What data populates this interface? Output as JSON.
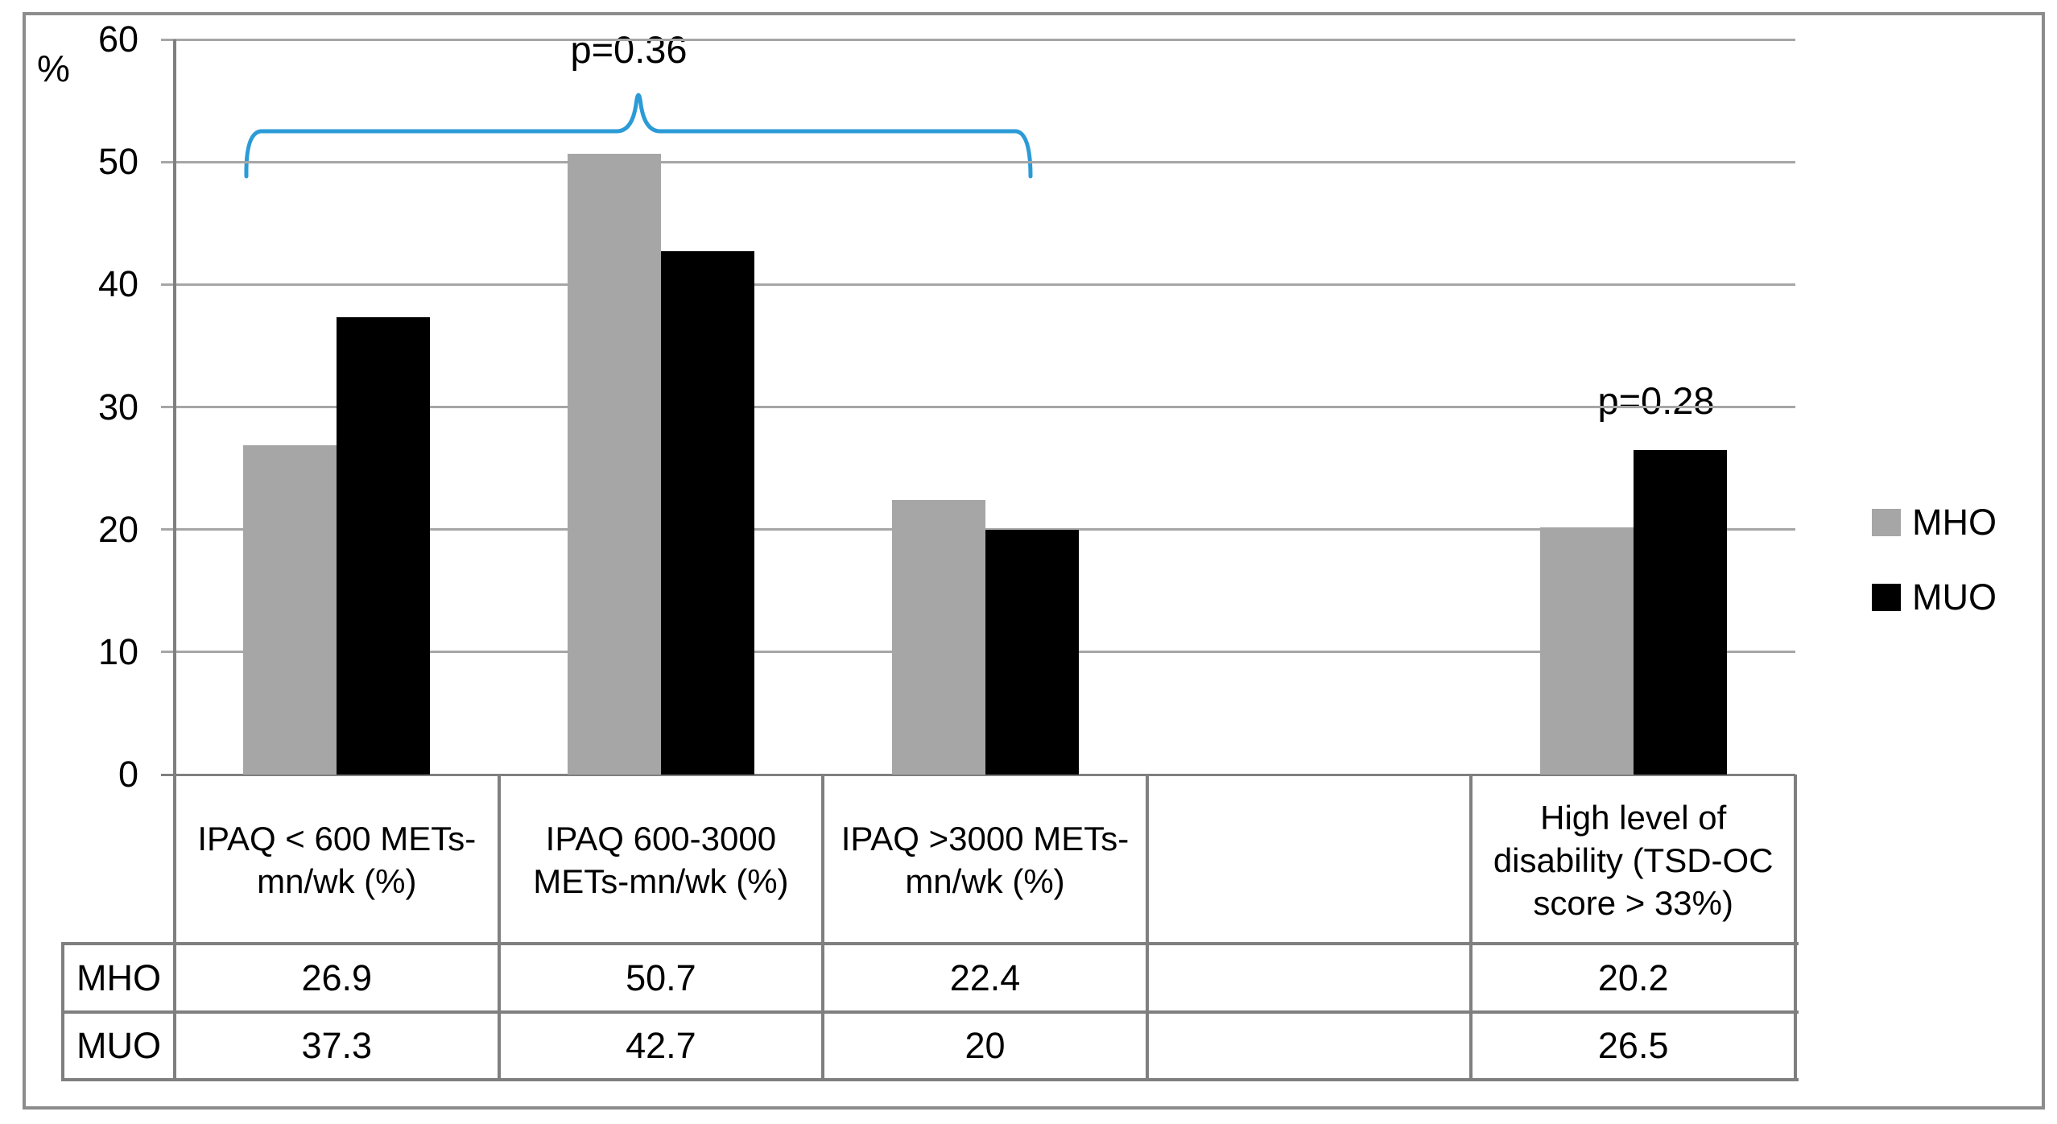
{
  "chart_data": {
    "type": "bar",
    "title": "",
    "ylabel": "%",
    "xlabel": "",
    "ylim": [
      0,
      60
    ],
    "yticks": [
      0,
      10,
      20,
      30,
      40,
      50,
      60
    ],
    "grid": "horizontal",
    "legend_position": "right",
    "categories": [
      "IPAQ < 600 METs-mn/wk (%)",
      "IPAQ 600-3000 METs-mn/wk (%)",
      "IPAQ >3000 METs-mn/wk (%)",
      "",
      "High level of disability (TSD-OC score > 33%)"
    ],
    "series": [
      {
        "name": "MHO",
        "color": "#a6a6a6",
        "values": [
          26.9,
          50.7,
          22.4,
          null,
          20.2
        ]
      },
      {
        "name": "MUO",
        "color": "#000000",
        "values": [
          37.3,
          42.7,
          20,
          null,
          26.5
        ]
      }
    ],
    "data_table": {
      "rows": [
        {
          "label": "MHO",
          "display_values": [
            "26.9",
            "50.7",
            "22.4",
            "",
            "20.2"
          ]
        },
        {
          "label": "MUO",
          "display_values": [
            "37.3",
            "42.7",
            "20",
            "",
            "26.5"
          ]
        }
      ]
    },
    "annotations": [
      {
        "label": "p=0.36",
        "covers": "IPAQ groups 1-3",
        "bracket_color": "#2b9bd7"
      },
      {
        "label": "p=0.28",
        "covers": "High level of disability group"
      }
    ]
  }
}
